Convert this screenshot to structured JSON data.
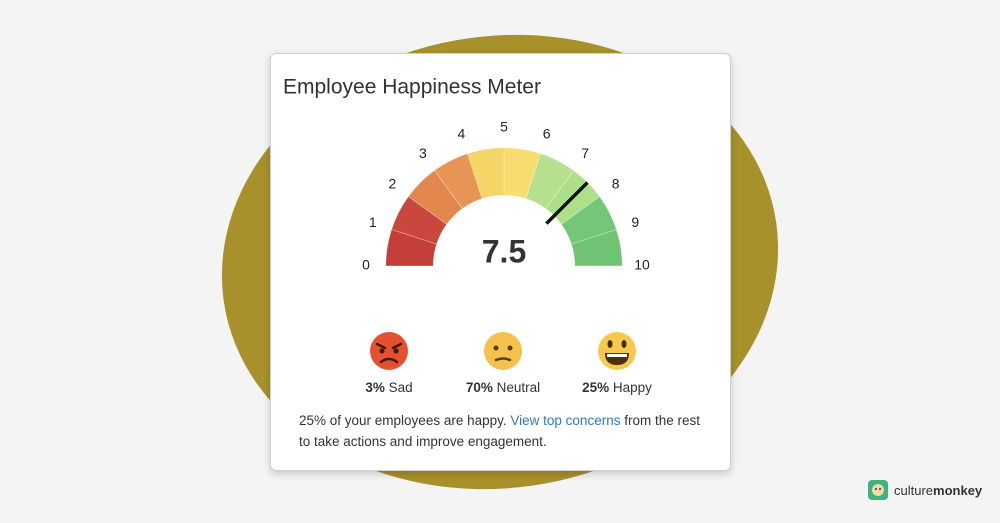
{
  "chart_data": {
    "type": "gauge",
    "title": "Employee Happiness Meter",
    "value": 7.5,
    "xlim": [
      0,
      10
    ],
    "xticks": [
      0,
      1,
      2,
      3,
      4,
      5,
      6,
      7,
      8,
      9,
      10
    ],
    "segment_colors": [
      "#c43f37",
      "#c9473c",
      "#e2874e",
      "#e79554",
      "#f5d565",
      "#f8dc70",
      "#b6e08e",
      "#ade089",
      "#74c777",
      "#6fc373"
    ],
    "needle_color": "#111111"
  },
  "sentiments": [
    {
      "value": 3,
      "value_label": "3%",
      "name": "Sad"
    },
    {
      "value": 70,
      "value_label": "70%",
      "name": "Neutral"
    },
    {
      "value": 25,
      "value_label": "25%",
      "name": "Happy"
    }
  ],
  "summary": {
    "before": "25% of your employees are happy.",
    "link": "View top concerns",
    "after": "from the rest to take actions and improve engagement."
  },
  "brand": {
    "part1": "culture",
    "part2": "monkey"
  }
}
